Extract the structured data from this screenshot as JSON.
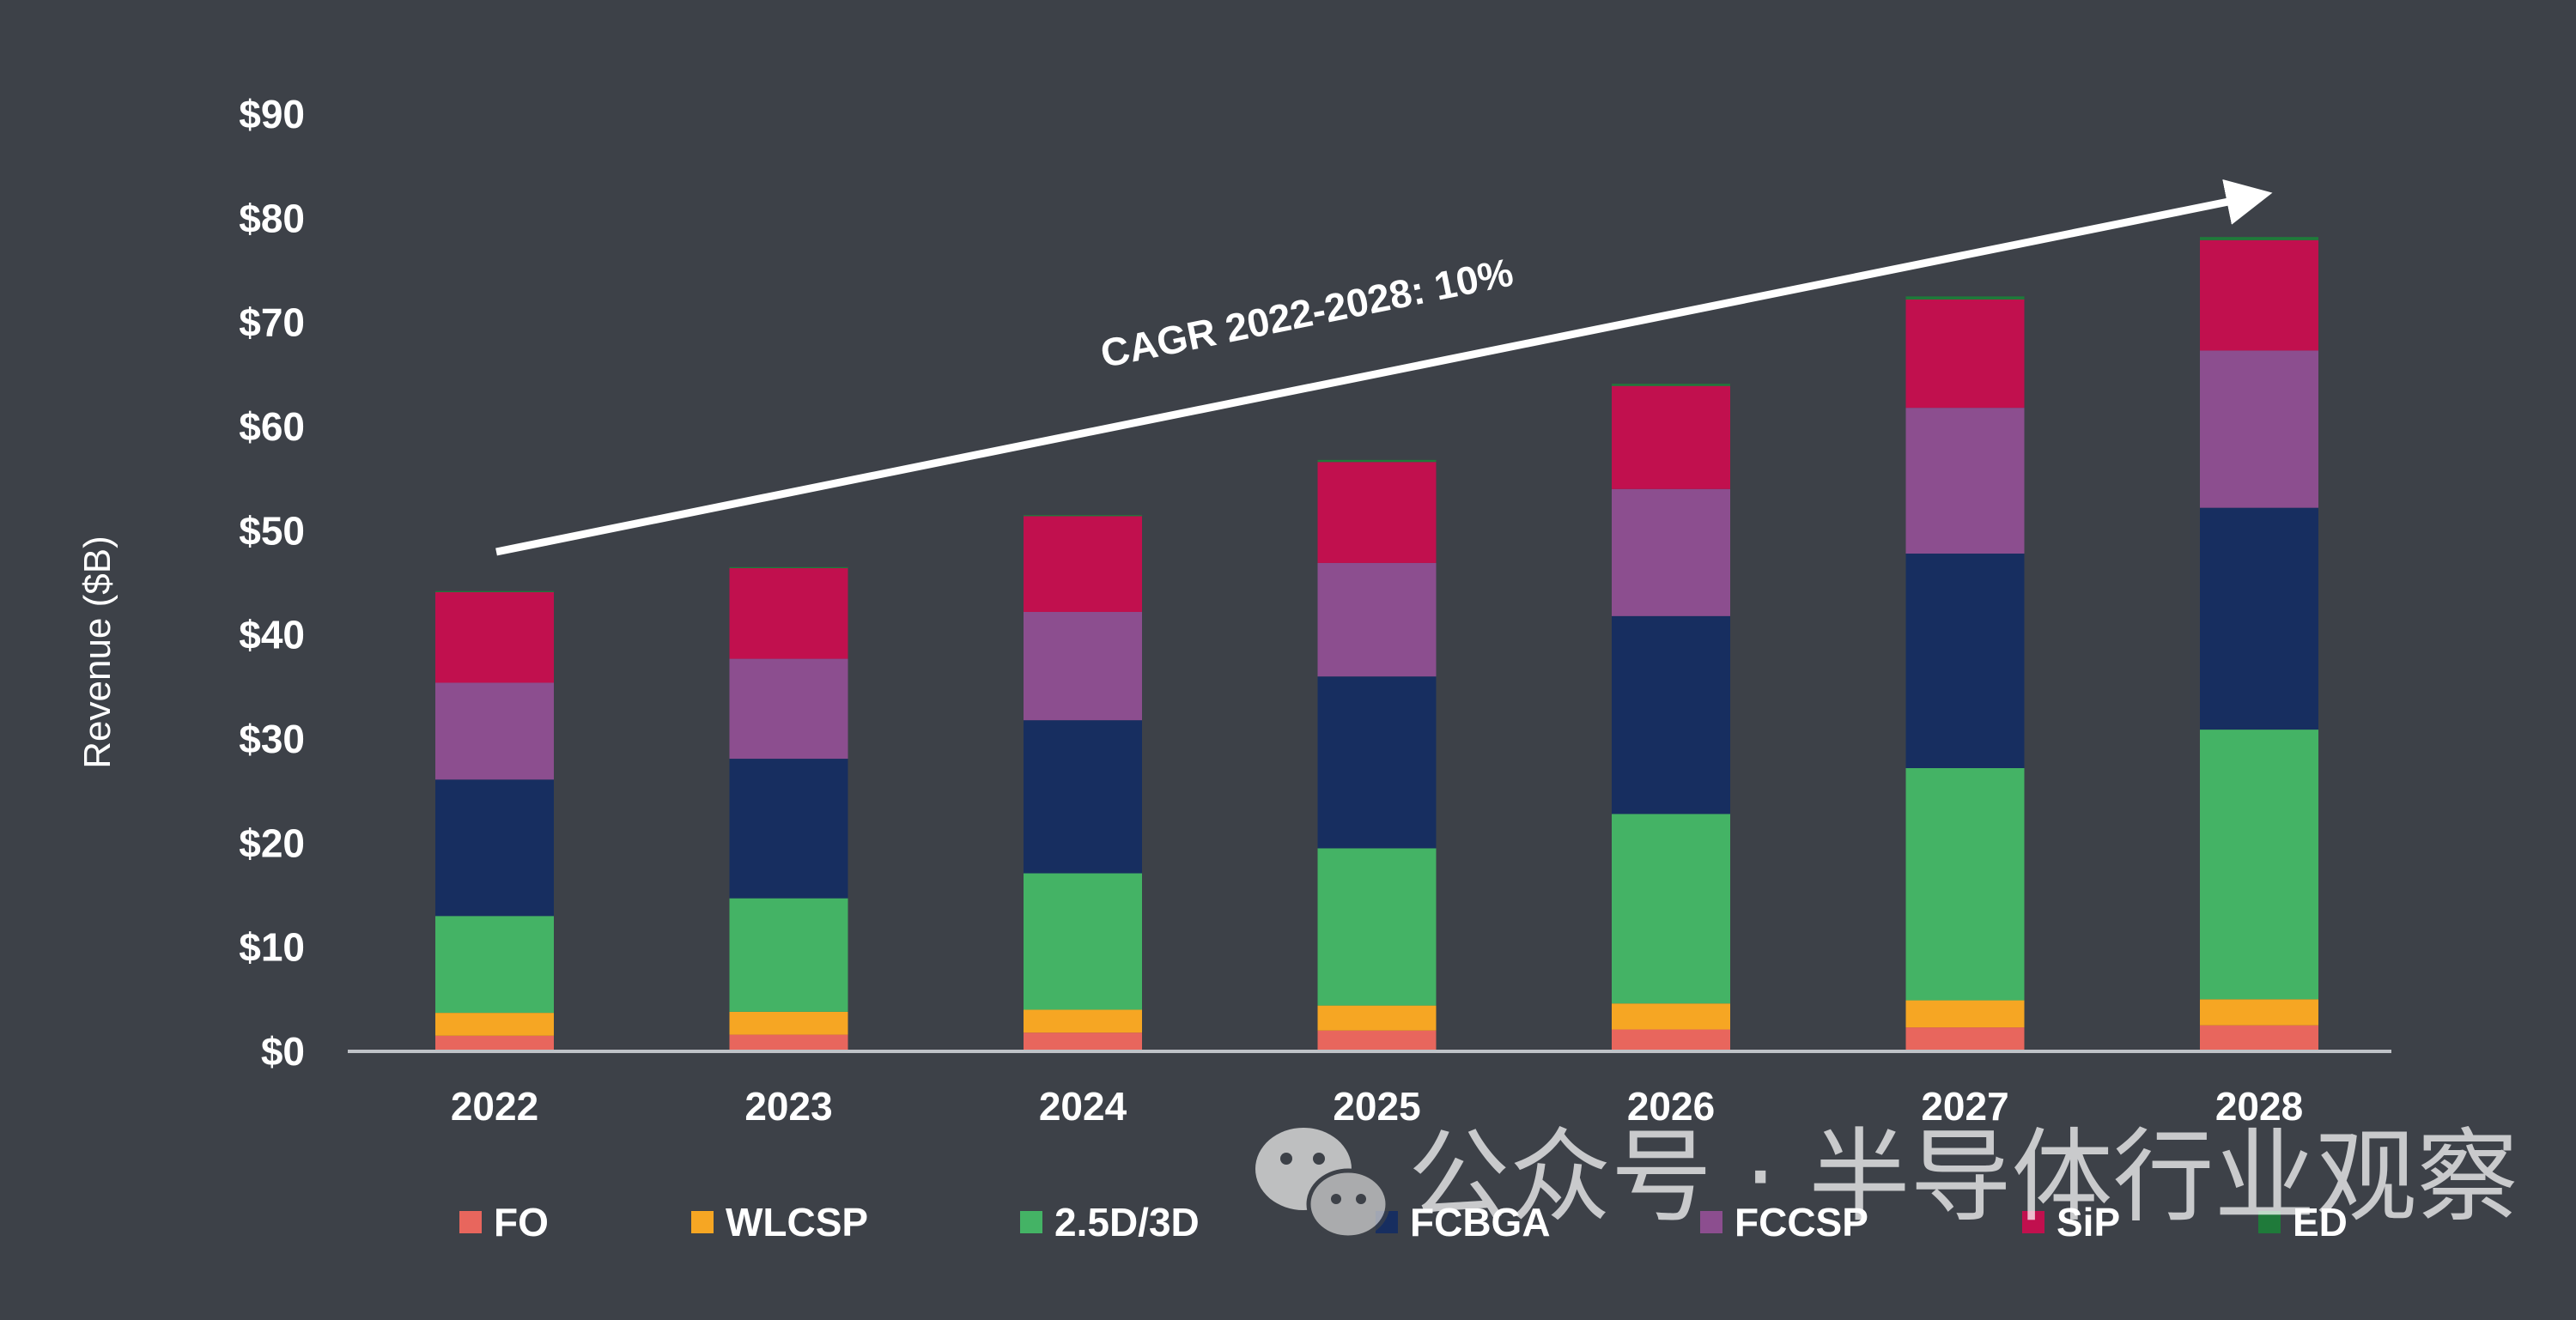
{
  "chart_data": {
    "type": "bar",
    "stacked": true,
    "title": "",
    "xlabel": "",
    "ylabel": "Revenue ($B)",
    "ylim": [
      0,
      90
    ],
    "y_ticks": [
      "$0",
      "$10",
      "$20",
      "$30",
      "$40",
      "$50",
      "$60",
      "$70",
      "$80",
      "$90"
    ],
    "categories": [
      "2022",
      "2023",
      "2024",
      "2025",
      "2026",
      "2027",
      "2028"
    ],
    "series": [
      {
        "name": "FO",
        "color": "#e8665d",
        "values": [
          1.5,
          1.6,
          1.8,
          2.0,
          2.1,
          2.3,
          2.5
        ]
      },
      {
        "name": "WLCSP",
        "color": "#f6a623",
        "values": [
          2.2,
          2.2,
          2.2,
          2.4,
          2.5,
          2.6,
          2.5
        ]
      },
      {
        "name": "2.5D/3D",
        "color": "#44b365",
        "values": [
          9.3,
          10.9,
          13.1,
          15.1,
          18.2,
          22.3,
          25.9
        ]
      },
      {
        "name": "FCBGA",
        "color": "#172e60",
        "values": [
          13.1,
          13.4,
          14.7,
          16.5,
          19.0,
          20.6,
          21.3
        ]
      },
      {
        "name": "FCCSP",
        "color": "#8c4e8f",
        "values": [
          9.3,
          9.6,
          10.4,
          10.9,
          12.2,
          14.0,
          15.1
        ]
      },
      {
        "name": "SiP",
        "color": "#c1104e",
        "values": [
          8.7,
          8.7,
          9.2,
          9.7,
          9.9,
          10.4,
          10.6
        ]
      },
      {
        "name": "ED",
        "color": "#1f7a3a",
        "values": [
          0.1,
          0.1,
          0.1,
          0.2,
          0.2,
          0.3,
          0.3
        ]
      }
    ],
    "annotations": [
      {
        "text": "CAGR 2022-2028: 10%",
        "type": "arrow",
        "from_year": "2022",
        "to_year": "2028"
      }
    ],
    "legend_position": "bottom",
    "grid": false
  },
  "colors": {
    "background": "#3d4148",
    "axis": "#bfc2c7",
    "text": "#ffffff"
  },
  "watermark": {
    "icon": "wechat-icon",
    "text": "公众号 · 半导体行业观察"
  }
}
